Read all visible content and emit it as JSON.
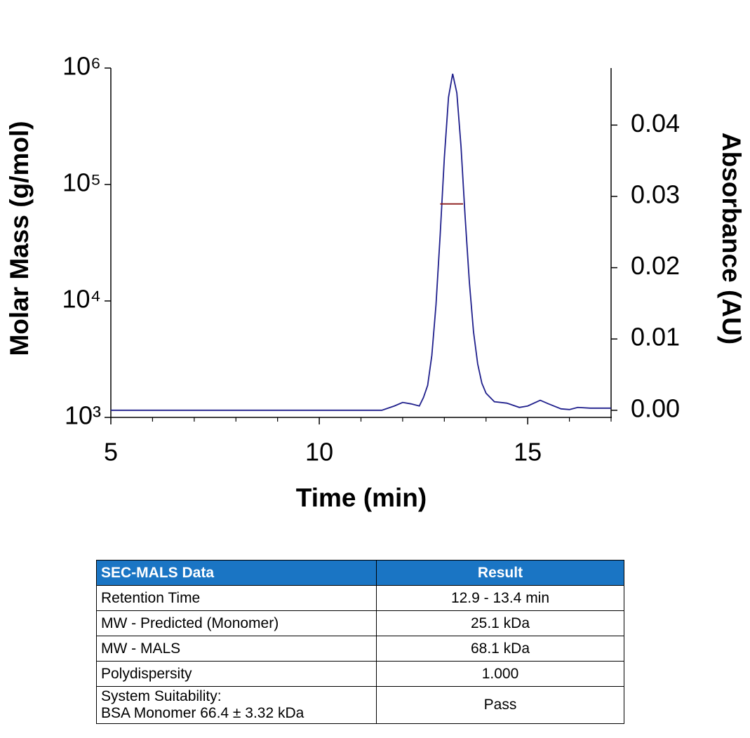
{
  "chart_data": {
    "type": "line",
    "xlabel": "Time (min)",
    "ylabel": "Molar Mass (g/mol)",
    "y2label": "Absorbance (AU)",
    "xlim": [
      5,
      17
    ],
    "xticks": [
      5,
      10,
      15
    ],
    "xminorticks": [
      6,
      7,
      8,
      9,
      11,
      12,
      13,
      14,
      16,
      17
    ],
    "ylog": true,
    "ylim": [
      1000,
      1000000
    ],
    "yticks": [
      {
        "value": 1000,
        "label": "10³"
      },
      {
        "value": 10000,
        "label": "10⁴"
      },
      {
        "value": 100000,
        "label": "10⁵"
      },
      {
        "value": 1000000,
        "label": "10⁶"
      }
    ],
    "y2lim": [
      -0.001,
      0.048
    ],
    "y2ticks": [
      {
        "value": 0,
        "label": "0.00"
      },
      {
        "value": 0.01,
        "label": "0.01"
      },
      {
        "value": 0.02,
        "label": "0.02"
      },
      {
        "value": 0.03,
        "label": "0.03"
      },
      {
        "value": 0.04,
        "label": "0.04"
      }
    ],
    "series": [
      {
        "color": "#1f1f8c",
        "axis": "y2",
        "x": [
          5,
          11.5,
          11.8,
          12.0,
          12.2,
          12.4,
          12.5,
          12.6,
          12.7,
          12.8,
          12.9,
          13.0,
          13.1,
          13.2,
          13.3,
          13.4,
          13.5,
          13.6,
          13.7,
          13.8,
          13.9,
          14.0,
          14.2,
          14.5,
          14.8,
          15.0,
          15.3,
          15.5,
          15.8,
          16.0,
          16.2,
          16.5,
          17.0
        ],
        "values": [
          0,
          0,
          0.0006,
          0.0011,
          0.0009,
          0.0006,
          0.0018,
          0.0035,
          0.0077,
          0.0148,
          0.0246,
          0.0354,
          0.0439,
          0.0472,
          0.0445,
          0.037,
          0.027,
          0.018,
          0.011,
          0.0065,
          0.0038,
          0.0024,
          0.0012,
          0.001,
          0.0004,
          0.0006,
          0.0014,
          0.0009,
          0.0002,
          0.0001,
          0.0004,
          0.0003,
          0.0003
        ]
      },
      {
        "color": "#8b1a1a",
        "axis": "y",
        "x": [
          12.9,
          13.45
        ],
        "values": [
          68100,
          68100
        ]
      }
    ]
  },
  "table": {
    "header": [
      "SEC-MALS Data",
      "Result"
    ],
    "rows": [
      [
        [
          "Retention Time"
        ],
        "12.9 - 13.4 min"
      ],
      [
        [
          "MW - Predicted (Monomer)"
        ],
        "25.1 kDa"
      ],
      [
        [
          "MW - MALS"
        ],
        "68.1 kDa"
      ],
      [
        [
          "Polydispersity"
        ],
        "1.000"
      ],
      [
        [
          "System Suitability:",
          "BSA Monomer 66.4 ± 3.32 kDa"
        ],
        "Pass"
      ]
    ]
  }
}
